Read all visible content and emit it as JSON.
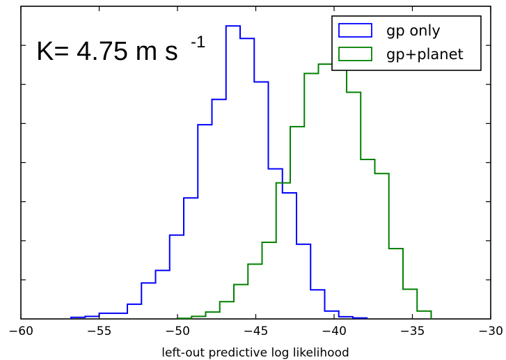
{
  "chart_data": {
    "type": "histogram",
    "xlabel": "left-out predictive log likelihood",
    "ylabel": "",
    "xlim": [
      -60,
      -30
    ],
    "ylim": [
      0,
      1
    ],
    "x_ticks": [
      -60,
      -55,
      -50,
      -45,
      -40,
      -35,
      -30
    ],
    "x_tick_labels": [
      "−60",
      "−55",
      "−50",
      "−45",
      "−40",
      "−35",
      "−30"
    ],
    "y_ticks": [
      0.125,
      0.25,
      0.375,
      0.5,
      0.625,
      0.75,
      0.875
    ],
    "y_tick_labels_shown": false,
    "grid": false,
    "legend": {
      "placement": "top-right"
    },
    "annotation": {
      "text": "K= 4.75 m s",
      "superscript": "-1"
    },
    "series": [
      {
        "name": "gp only",
        "color": "#0000ff",
        "bin_edges": [
          -56.8,
          -55.9,
          -55.0,
          -54.1,
          -53.2,
          -52.3,
          -51.4,
          -50.5,
          -49.6,
          -48.7,
          -47.8,
          -46.9,
          -46.0,
          -45.1,
          -44.2,
          -43.3,
          -42.4,
          -41.5,
          -40.6,
          -39.7,
          -38.8,
          -37.9
        ],
        "counts": [
          0.005,
          0.008,
          0.018,
          0.018,
          0.047,
          0.115,
          0.155,
          0.268,
          0.387,
          0.621,
          0.702,
          0.937,
          0.897,
          0.758,
          0.48,
          0.403,
          0.239,
          0.093,
          0.025,
          0.007,
          0.003
        ]
      },
      {
        "name": "gp+planet",
        "color": "#008000",
        "bin_edges": [
          -50.0,
          -49.1,
          -48.2,
          -47.3,
          -46.4,
          -45.5,
          -44.6,
          -43.7,
          -42.8,
          -41.9,
          -41.0,
          -40.1,
          -39.2,
          -38.3,
          -37.4,
          -36.5,
          -35.6,
          -34.7,
          -33.8
        ],
        "counts": [
          0.002,
          0.008,
          0.022,
          0.055,
          0.11,
          0.175,
          0.245,
          0.435,
          0.615,
          0.785,
          0.815,
          0.915,
          0.725,
          0.51,
          0.465,
          0.225,
          0.095,
          0.025
        ]
      }
    ]
  }
}
